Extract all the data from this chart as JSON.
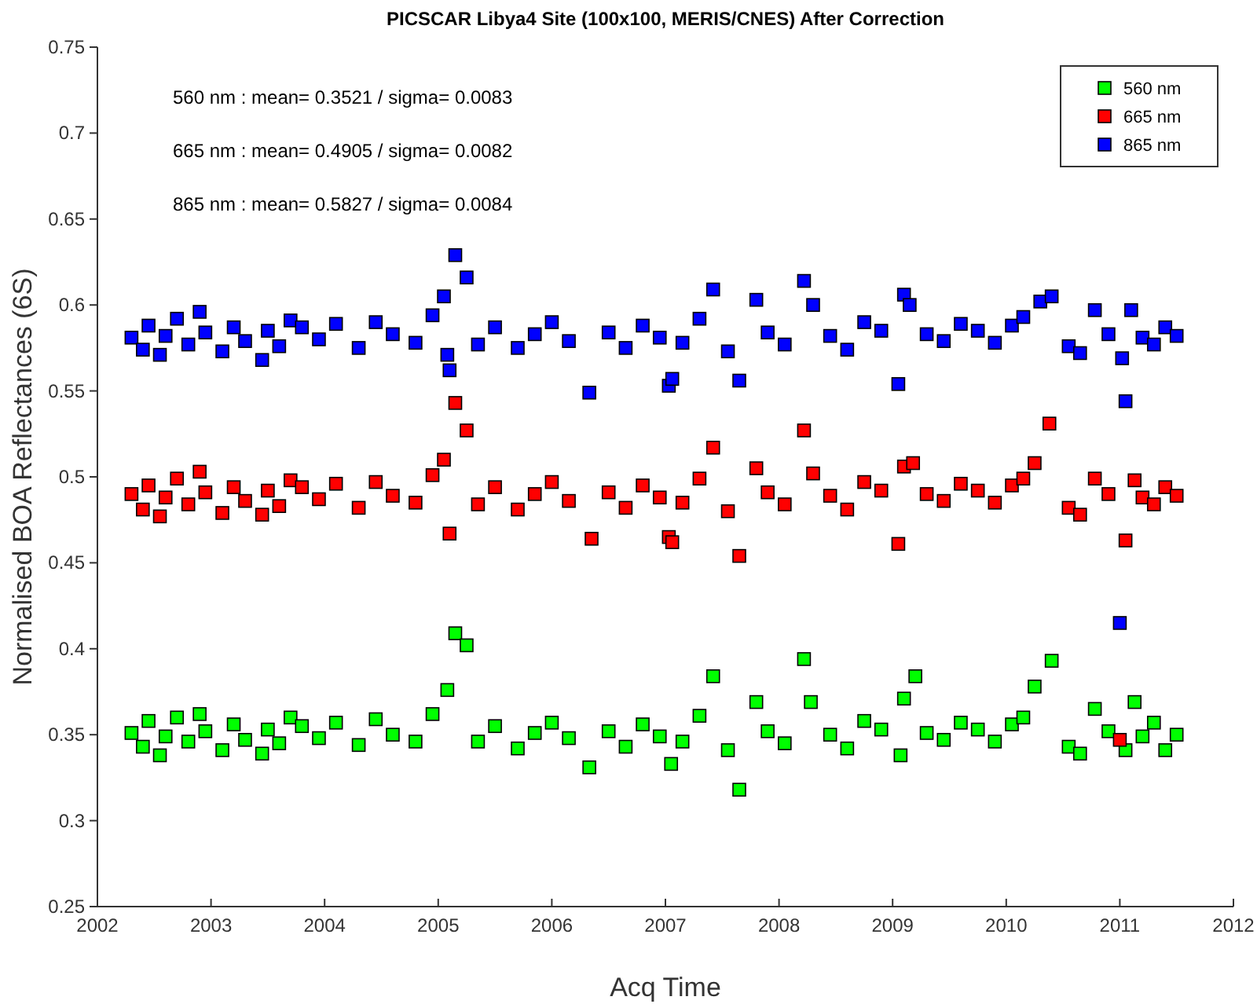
{
  "chart_data": {
    "type": "scatter",
    "title": "PICSCAR Libya4 Site (100x100, MERIS/CNES) After Correction",
    "xlabel": "Acq Time",
    "ylabel": "Normalised BOA Reflectances (6S)",
    "annotations": [
      "560 nm : mean= 0.3521 / sigma= 0.0083",
      "665 nm : mean= 0.4905 / sigma= 0.0082",
      "865 nm : mean= 0.5827 / sigma= 0.0084"
    ],
    "xlim": [
      2002,
      2012
    ],
    "ylim": [
      0.25,
      0.75
    ],
    "xticks": [
      2002,
      2003,
      2004,
      2005,
      2006,
      2007,
      2008,
      2009,
      2010,
      2011,
      2012
    ],
    "yticks": [
      0.25,
      0.3,
      0.35,
      0.4,
      0.45,
      0.5,
      0.55,
      0.6,
      0.65,
      0.7,
      0.75
    ],
    "grid": false,
    "legend": "top right",
    "marker": "square",
    "series": [
      {
        "name": "560 nm",
        "color": "#00ff00",
        "x": [
          2002.3,
          2002.4,
          2002.45,
          2002.55,
          2002.6,
          2002.7,
          2002.8,
          2002.9,
          2002.95,
          2003.1,
          2003.2,
          2003.3,
          2003.45,
          2003.5,
          2003.6,
          2003.7,
          2003.8,
          2003.95,
          2004.1,
          2004.3,
          2004.45,
          2004.6,
          2004.8,
          2004.95,
          2005.08,
          2005.15,
          2005.25,
          2005.35,
          2005.5,
          2005.7,
          2005.85,
          2006.0,
          2006.15,
          2006.33,
          2006.5,
          2006.65,
          2006.8,
          2006.95,
          2007.05,
          2007.15,
          2007.3,
          2007.42,
          2007.55,
          2007.65,
          2007.8,
          2007.9,
          2008.05,
          2008.22,
          2008.28,
          2008.45,
          2008.6,
          2008.75,
          2008.9,
          2009.07,
          2009.1,
          2009.2,
          2009.3,
          2009.45,
          2009.6,
          2009.75,
          2009.9,
          2010.05,
          2010.15,
          2010.25,
          2010.4,
          2010.55,
          2010.65,
          2010.78,
          2010.9,
          2011.05,
          2011.13,
          2011.2,
          2011.3,
          2011.4,
          2011.5
        ],
        "values": [
          0.351,
          0.343,
          0.358,
          0.338,
          0.349,
          0.36,
          0.346,
          0.362,
          0.352,
          0.341,
          0.356,
          0.347,
          0.339,
          0.353,
          0.345,
          0.36,
          0.355,
          0.348,
          0.357,
          0.344,
          0.359,
          0.35,
          0.346,
          0.362,
          0.376,
          0.409,
          0.402,
          0.346,
          0.355,
          0.342,
          0.351,
          0.357,
          0.348,
          0.331,
          0.352,
          0.343,
          0.356,
          0.349,
          0.333,
          0.346,
          0.361,
          0.384,
          0.341,
          0.318,
          0.369,
          0.352,
          0.345,
          0.394,
          0.369,
          0.35,
          0.342,
          0.358,
          0.353,
          0.338,
          0.371,
          0.384,
          0.351,
          0.347,
          0.357,
          0.353,
          0.346,
          0.356,
          0.36,
          0.378,
          0.393,
          0.343,
          0.339,
          0.365,
          0.352,
          0.341,
          0.369,
          0.349,
          0.357,
          0.341,
          0.35
        ]
      },
      {
        "name": "665 nm",
        "color": "#ff0000",
        "x": [
          2002.3,
          2002.4,
          2002.45,
          2002.55,
          2002.6,
          2002.7,
          2002.8,
          2002.9,
          2002.95,
          2003.1,
          2003.2,
          2003.3,
          2003.45,
          2003.5,
          2003.6,
          2003.7,
          2003.8,
          2003.95,
          2004.1,
          2004.3,
          2004.45,
          2004.6,
          2004.8,
          2004.95,
          2005.05,
          2005.1,
          2005.15,
          2005.25,
          2005.35,
          2005.5,
          2005.7,
          2005.85,
          2006.0,
          2006.15,
          2006.35,
          2006.5,
          2006.65,
          2006.8,
          2006.95,
          2007.03,
          2007.06,
          2007.15,
          2007.3,
          2007.42,
          2007.55,
          2007.65,
          2007.8,
          2007.9,
          2008.05,
          2008.22,
          2008.3,
          2008.45,
          2008.6,
          2008.75,
          2008.9,
          2009.05,
          2009.1,
          2009.18,
          2009.3,
          2009.45,
          2009.6,
          2009.75,
          2009.9,
          2010.05,
          2010.15,
          2010.25,
          2010.38,
          2010.55,
          2010.65,
          2010.78,
          2010.9,
          2011.0,
          2011.05,
          2011.13,
          2011.2,
          2011.3,
          2011.4,
          2011.5
        ],
        "values": [
          0.49,
          0.481,
          0.495,
          0.477,
          0.488,
          0.499,
          0.484,
          0.503,
          0.491,
          0.479,
          0.494,
          0.486,
          0.478,
          0.492,
          0.483,
          0.498,
          0.494,
          0.487,
          0.496,
          0.482,
          0.497,
          0.489,
          0.485,
          0.501,
          0.51,
          0.467,
          0.543,
          0.527,
          0.484,
          0.494,
          0.481,
          0.49,
          0.497,
          0.486,
          0.464,
          0.491,
          0.482,
          0.495,
          0.488,
          0.465,
          0.462,
          0.485,
          0.499,
          0.517,
          0.48,
          0.454,
          0.505,
          0.491,
          0.484,
          0.527,
          0.502,
          0.489,
          0.481,
          0.497,
          0.492,
          0.461,
          0.506,
          0.508,
          0.49,
          0.486,
          0.496,
          0.492,
          0.485,
          0.495,
          0.499,
          0.508,
          0.531,
          0.482,
          0.478,
          0.499,
          0.49,
          0.347,
          0.463,
          0.498,
          0.488,
          0.484,
          0.494,
          0.489
        ]
      },
      {
        "name": "865 nm",
        "color": "#0000ff",
        "x": [
          2002.3,
          2002.4,
          2002.45,
          2002.55,
          2002.6,
          2002.7,
          2002.8,
          2002.9,
          2002.95,
          2003.1,
          2003.2,
          2003.3,
          2003.45,
          2003.5,
          2003.6,
          2003.7,
          2003.8,
          2003.95,
          2004.1,
          2004.3,
          2004.45,
          2004.6,
          2004.8,
          2004.95,
          2005.05,
          2005.08,
          2005.1,
          2005.15,
          2005.25,
          2005.35,
          2005.5,
          2005.7,
          2005.85,
          2006.0,
          2006.15,
          2006.33,
          2006.5,
          2006.65,
          2006.8,
          2006.95,
          2007.03,
          2007.06,
          2007.15,
          2007.3,
          2007.42,
          2007.55,
          2007.65,
          2007.8,
          2007.9,
          2008.05,
          2008.22,
          2008.3,
          2008.45,
          2008.6,
          2008.75,
          2008.9,
          2009.05,
          2009.1,
          2009.15,
          2009.3,
          2009.45,
          2009.6,
          2009.75,
          2009.9,
          2010.05,
          2010.15,
          2010.3,
          2010.4,
          2010.55,
          2010.65,
          2010.78,
          2010.9,
          2011.0,
          2011.02,
          2011.05,
          2011.1,
          2011.2,
          2011.3,
          2011.4,
          2011.5
        ],
        "values": [
          0.581,
          0.574,
          0.588,
          0.571,
          0.582,
          0.592,
          0.577,
          0.596,
          0.584,
          0.573,
          0.587,
          0.579,
          0.568,
          0.585,
          0.576,
          0.591,
          0.587,
          0.58,
          0.589,
          0.575,
          0.59,
          0.583,
          0.578,
          0.594,
          0.605,
          0.571,
          0.562,
          0.629,
          0.616,
          0.577,
          0.587,
          0.575,
          0.583,
          0.59,
          0.579,
          0.549,
          0.584,
          0.575,
          0.588,
          0.581,
          0.553,
          0.557,
          0.578,
          0.592,
          0.609,
          0.573,
          0.556,
          0.603,
          0.584,
          0.577,
          0.614,
          0.6,
          0.582,
          0.574,
          0.59,
          0.585,
          0.554,
          0.606,
          0.6,
          0.583,
          0.579,
          0.589,
          0.585,
          0.578,
          0.588,
          0.593,
          0.602,
          0.605,
          0.576,
          0.572,
          0.597,
          0.583,
          0.415,
          0.569,
          0.544,
          0.597,
          0.581,
          0.577,
          0.587,
          0.582
        ]
      }
    ]
  }
}
